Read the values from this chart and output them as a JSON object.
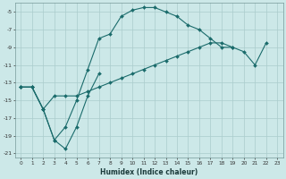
{
  "xlabel": "Humidex (Indice chaleur)",
  "bg_color": "#cce8e8",
  "grid_color": "#aacccc",
  "line_color": "#1a6b6b",
  "xlim": [
    -0.5,
    23.5
  ],
  "ylim": [
    -21.5,
    -4.0
  ],
  "xticks": [
    0,
    1,
    2,
    3,
    4,
    5,
    6,
    7,
    8,
    9,
    10,
    11,
    12,
    13,
    14,
    15,
    16,
    17,
    18,
    19,
    20,
    21,
    22,
    23
  ],
  "yticks": [
    -21,
    -19,
    -17,
    -15,
    -13,
    -11,
    -9,
    -7,
    -5
  ],
  "series": [
    {
      "x": [
        0,
        1,
        2,
        3,
        4,
        5,
        6,
        7,
        8,
        9,
        10,
        11,
        12,
        13,
        14,
        15,
        16,
        17,
        18,
        19
      ],
      "y": [
        -13.5,
        -13.5,
        -16.0,
        -19.5,
        -18.0,
        -15.0,
        -11.5,
        -8.0,
        -7.5,
        -5.5,
        -4.8,
        -4.5,
        -4.5,
        -5.0,
        -5.5,
        -6.5,
        -7.0,
        -8.0,
        -9.0,
        -9.0
      ]
    },
    {
      "x": [
        0,
        1,
        2,
        3,
        4,
        5,
        6,
        7
      ],
      "y": [
        -13.5,
        -13.5,
        -16.0,
        -19.5,
        -20.5,
        -18.0,
        -14.5,
        -12.0
      ]
    },
    {
      "x": [
        0,
        1,
        2,
        3,
        4,
        5,
        6,
        7,
        8,
        9,
        10,
        11,
        12,
        13,
        14,
        15,
        16,
        17,
        18,
        19,
        20,
        21,
        22
      ],
      "y": [
        -13.5,
        -13.5,
        -16.0,
        -14.5,
        -14.5,
        -14.5,
        -14.0,
        -13.5,
        -13.0,
        -12.5,
        -12.0,
        -11.5,
        -11.0,
        -10.5,
        -10.0,
        -9.5,
        -9.0,
        -8.5,
        -8.5,
        -9.0,
        -9.5,
        -11.0,
        -8.5
      ]
    }
  ]
}
